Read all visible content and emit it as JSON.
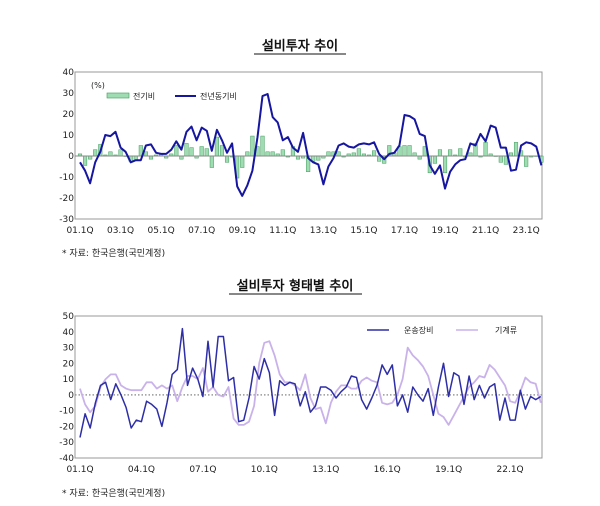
{
  "chart_data": [
    {
      "type": "bar+line",
      "title": "설비투자 추이",
      "unit_label": "(%)",
      "ylim": [
        -30,
        40
      ],
      "yticks": [
        40,
        30,
        20,
        10,
        0,
        -10,
        -20,
        -30
      ],
      "x_start": "01.1Q",
      "xtick_labels": [
        "01.1Q",
        "03.1Q",
        "05.1Q",
        "07.1Q",
        "09.1Q",
        "11.1Q",
        "13.1Q",
        "15.1Q",
        "17.1Q",
        "19.1Q",
        "21.1Q",
        "23.1Q"
      ],
      "grid": false,
      "legend_position": "top-left",
      "series": [
        {
          "name": "전기비",
          "kind": "bar",
          "color": "#9fdcb2",
          "edge": "#3f9c5c",
          "values": [
            1,
            -4.5,
            -1.5,
            3,
            5.5,
            0.5,
            2,
            0.5,
            3,
            0,
            -2.5,
            -2,
            5,
            2,
            -1.5,
            0.5,
            1,
            -1,
            1,
            5,
            -1.5,
            6,
            4,
            -1,
            4.5,
            3.5,
            -5.5,
            9,
            5,
            -3,
            -0.5,
            -10.5,
            -5.5,
            2,
            9.5,
            4.5,
            9.5,
            2,
            2,
            1,
            3,
            -0.5,
            4.5,
            -1.5,
            -1,
            -7.5,
            -2.5,
            -2,
            -1,
            2,
            2,
            2,
            -0.5,
            1,
            1.5,
            3.5,
            1,
            0.5,
            2.5,
            -2.5,
            -3.5,
            5,
            1.5,
            4.5,
            5,
            5,
            1.5,
            -1.5,
            4.5,
            -8,
            -3.5,
            3,
            -8,
            3,
            0.5,
            3.5,
            -0.5,
            1.5,
            6,
            -0.5,
            6.5,
            1,
            0,
            -3,
            -4,
            1.5,
            6.5,
            2.5,
            -5,
            -0.5,
            0,
            -3
          ]
        },
        {
          "name": "전년동기비",
          "kind": "line",
          "color": "#1616a0",
          "values": [
            -3,
            -7,
            -13,
            -3,
            2,
            10,
            9.5,
            11.5,
            4,
            2,
            -3,
            -2,
            -2,
            5,
            5.5,
            1.5,
            1,
            1,
            3,
            7,
            3,
            11.5,
            14,
            7.5,
            13.5,
            12,
            2.5,
            12.5,
            7.5,
            1.5,
            6,
            -14.5,
            -19,
            -14,
            -7,
            9,
            28.5,
            29.5,
            18.5,
            16,
            7.5,
            9,
            4,
            2,
            11,
            -1,
            -3,
            -4,
            -13.5,
            -5,
            -1,
            5,
            6,
            4.5,
            4,
            5.5,
            6,
            5.5,
            6.5,
            1,
            -1.5,
            1,
            1.5,
            5,
            19.5,
            19,
            17.5,
            10.5,
            9.5,
            -4.5,
            -8.5,
            -4.5,
            -15.5,
            -7.5,
            -4,
            -2,
            -1.5,
            6,
            5,
            10.5,
            7,
            14.5,
            13.5,
            4,
            4,
            -7,
            -6.5,
            5,
            6.5,
            6,
            4.5,
            -4.5
          ]
        }
      ],
      "footnote": "* 자료: 한국은행(국민계정)"
    },
    {
      "type": "line",
      "title": "설비투자 형태별 추이",
      "ylim": [
        -40,
        50
      ],
      "yticks": [
        50,
        40,
        30,
        20,
        10,
        0,
        -10,
        -20,
        -30,
        -40
      ],
      "x_start": "01.1Q",
      "xtick_labels": [
        "01.1Q",
        "04.1Q",
        "07.1Q",
        "10.1Q",
        "13.1Q",
        "16.1Q",
        "19.1Q",
        "22.1Q"
      ],
      "grid": false,
      "legend_position": "top-right",
      "series": [
        {
          "name": "운송장비",
          "color": "#2e2ea6",
          "values": [
            -27,
            -12,
            -21,
            -5,
            6,
            8,
            -3,
            7,
            0,
            -8,
            -21,
            -16,
            -17,
            -4,
            -6,
            -9,
            -20,
            -5,
            13,
            16,
            42,
            6,
            17,
            10,
            -1,
            34,
            5,
            37,
            37,
            9,
            11,
            -17,
            -16,
            -2,
            18,
            10,
            23,
            14,
            -13,
            9,
            6,
            8,
            7,
            -7,
            2,
            -11,
            -7,
            5,
            5,
            3,
            -2,
            2,
            5,
            12,
            11,
            -3,
            -9,
            -2,
            6,
            19,
            13,
            19,
            -7,
            0,
            -11,
            5,
            0,
            -4,
            4,
            -13,
            5,
            20,
            -1,
            14,
            12,
            -6,
            12,
            -3,
            6,
            -2,
            5,
            7,
            -16,
            -2,
            -16,
            -16,
            3,
            -9,
            -1,
            -3,
            -1
          ]
        },
        {
          "name": "기계류",
          "color": "#c9b2ea",
          "values": [
            4,
            -6,
            -11,
            -7,
            5,
            10,
            13,
            13,
            6,
            4,
            3,
            3,
            3,
            8,
            8,
            4,
            6,
            4,
            6,
            -4,
            5,
            12,
            12,
            10,
            17,
            2,
            5,
            0,
            -1,
            5,
            -15,
            -19,
            -19,
            -17,
            -7,
            20,
            33,
            34,
            25,
            13,
            8,
            8,
            6,
            3,
            13,
            -2,
            -9,
            -8,
            -18,
            -5,
            2,
            6,
            6,
            4,
            4,
            9,
            11,
            9,
            8,
            -5,
            -6,
            -5,
            0,
            10,
            30,
            25,
            22,
            18,
            12,
            0,
            -12,
            -14,
            -19,
            -13,
            -7,
            -1,
            5,
            8,
            12,
            11,
            19,
            16,
            11,
            6,
            -4,
            -5,
            2,
            11,
            8,
            7,
            -5
          ]
        }
      ],
      "footnote": "* 자료: 한국은행(국민계정)"
    }
  ]
}
